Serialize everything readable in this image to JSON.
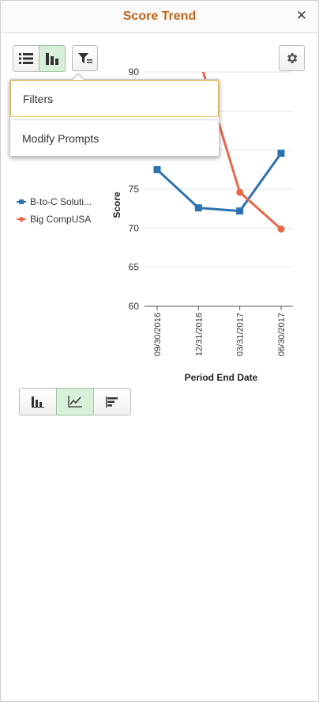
{
  "header": {
    "title": "Score Trend",
    "close_icon": "close-icon",
    "close_glyph": "✕"
  },
  "toolbar": {
    "list_view_icon": "list-view-icon",
    "chart_view_icon": "chart-view-icon",
    "filter_icon": "filter-icon",
    "settings_icon": "gear-icon"
  },
  "dropdown": {
    "items": [
      {
        "label": "Filters"
      },
      {
        "label": "Modify Prompts"
      }
    ]
  },
  "legend": {
    "items": [
      {
        "label": "B-to-C Soluti...",
        "color": "#2b73b0"
      },
      {
        "label": "Big CompUSA",
        "color": "#e8684a"
      }
    ]
  },
  "chart_data": {
    "type": "line",
    "xlabel": "Period End Date",
    "ylabel": "Score",
    "ylim": [
      60,
      90
    ],
    "yticks": [
      60,
      65,
      70,
      75,
      80,
      85
    ],
    "categories": [
      "09/30/2016",
      "12/31/2016",
      "03/31/2017",
      "06/30/2017"
    ],
    "series": [
      {
        "name": "B-to-C Soluti...",
        "color": "#2b73b0",
        "marker": "square",
        "values": [
          77.5,
          72.6,
          72.2,
          79.6
        ]
      },
      {
        "name": "Big CompUSA",
        "color": "#e8684a",
        "marker": "circle",
        "values": [
          null,
          92,
          74.6,
          69.9
        ]
      }
    ],
    "legend_position": "left",
    "grid": true
  },
  "chart_type_switcher": {
    "bar_icon": "vertical-bar-chart-icon",
    "line_icon": "line-chart-icon",
    "horizontal_bar_icon": "horizontal-bar-chart-icon",
    "active": "line"
  }
}
